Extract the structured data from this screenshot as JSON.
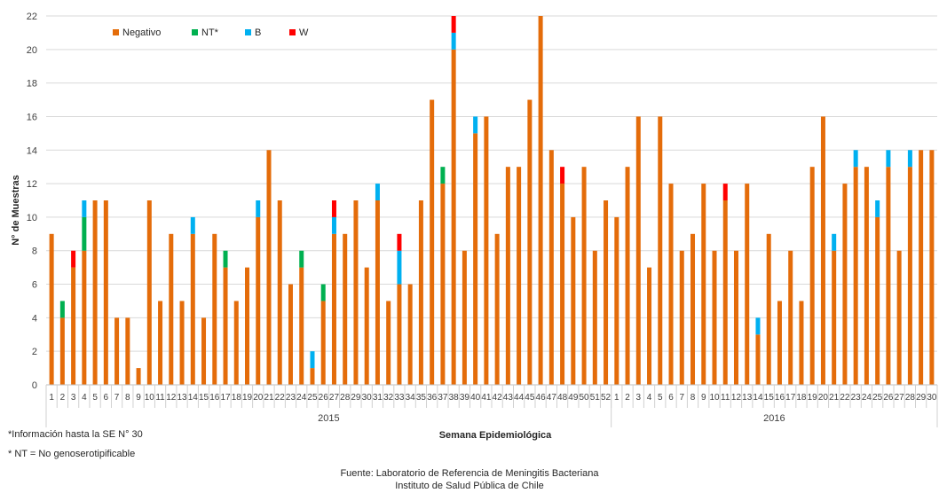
{
  "chart_data": {
    "type": "bar",
    "stacked": true,
    "ylabel": "N° de Muestras",
    "xlabel": "Semana Epidemiológica",
    "ylim": [
      0,
      22
    ],
    "yticks": [
      0,
      2,
      4,
      6,
      8,
      10,
      12,
      14,
      16,
      18,
      20,
      22
    ],
    "grid": true,
    "legend_position": "top-left",
    "years": [
      {
        "label": "2015",
        "weeks": 52
      },
      {
        "label": "2016",
        "weeks": 30
      }
    ],
    "categories": [
      "1",
      "2",
      "3",
      "4",
      "5",
      "6",
      "7",
      "8",
      "9",
      "10",
      "11",
      "12",
      "13",
      "14",
      "15",
      "16",
      "17",
      "18",
      "19",
      "20",
      "21",
      "22",
      "23",
      "24",
      "25",
      "26",
      "27",
      "28",
      "29",
      "30",
      "31",
      "32",
      "33",
      "34",
      "35",
      "36",
      "37",
      "38",
      "39",
      "40",
      "41",
      "42",
      "43",
      "44",
      "45",
      "46",
      "47",
      "48",
      "49",
      "50",
      "51",
      "52",
      "1",
      "2",
      "3",
      "4",
      "5",
      "6",
      "7",
      "8",
      "9",
      "10",
      "11",
      "12",
      "13",
      "14",
      "15",
      "16",
      "17",
      "18",
      "19",
      "20",
      "21",
      "22",
      "23",
      "24",
      "25",
      "26",
      "27",
      "28",
      "29",
      "30"
    ],
    "series": [
      {
        "name": "Negativo",
        "color": "#E46C0A",
        "values": [
          9,
          4,
          7,
          8,
          11,
          11,
          4,
          4,
          1,
          11,
          5,
          9,
          5,
          9,
          4,
          9,
          7,
          5,
          7,
          10,
          14,
          11,
          6,
          7,
          1,
          5,
          9,
          9,
          11,
          7,
          11,
          5,
          6,
          6,
          11,
          17,
          12,
          20,
          8,
          15,
          16,
          9,
          13,
          13,
          17,
          22,
          14,
          12,
          10,
          13,
          8,
          11,
          10,
          13,
          16,
          7,
          16,
          12,
          8,
          9,
          12,
          8,
          11,
          8,
          12,
          3,
          9,
          5,
          8,
          5,
          13,
          16,
          8,
          12,
          13,
          13,
          10,
          13,
          8,
          13,
          14,
          14
        ]
      },
      {
        "name": "NT*",
        "color": "#00B050",
        "values": [
          0,
          1,
          0,
          2,
          0,
          0,
          0,
          0,
          0,
          0,
          0,
          0,
          0,
          0,
          0,
          0,
          1,
          0,
          0,
          0,
          0,
          0,
          0,
          1,
          0,
          1,
          0,
          0,
          0,
          0,
          0,
          0,
          0,
          0,
          0,
          0,
          1,
          0,
          0,
          0,
          0,
          0,
          0,
          0,
          0,
          0,
          0,
          0,
          0,
          0,
          0,
          0,
          0,
          0,
          0,
          0,
          0,
          0,
          0,
          0,
          0,
          0,
          0,
          0,
          0,
          0,
          0,
          0,
          0,
          0,
          0,
          0,
          0,
          0,
          0,
          0,
          0,
          0,
          0,
          0,
          0,
          0
        ]
      },
      {
        "name": "B",
        "color": "#00B0F0",
        "values": [
          0,
          0,
          0,
          1,
          0,
          0,
          0,
          0,
          0,
          0,
          0,
          0,
          0,
          1,
          0,
          0,
          0,
          0,
          0,
          1,
          0,
          0,
          0,
          0,
          1,
          0,
          1,
          0,
          0,
          0,
          1,
          0,
          2,
          0,
          0,
          0,
          0,
          1,
          0,
          1,
          0,
          0,
          0,
          0,
          0,
          0,
          0,
          0,
          0,
          0,
          0,
          0,
          0,
          0,
          0,
          0,
          0,
          0,
          0,
          0,
          0,
          0,
          0,
          0,
          0,
          1,
          0,
          0,
          0,
          0,
          0,
          0,
          1,
          0,
          1,
          0,
          1,
          1,
          0,
          1,
          0,
          0
        ]
      },
      {
        "name": "W",
        "color": "#FF0000",
        "values": [
          0,
          0,
          1,
          0,
          0,
          0,
          0,
          0,
          0,
          0,
          0,
          0,
          0,
          0,
          0,
          0,
          0,
          0,
          0,
          0,
          0,
          0,
          0,
          0,
          0,
          0,
          1,
          0,
          0,
          0,
          0,
          0,
          1,
          0,
          0,
          0,
          0,
          1,
          0,
          0,
          0,
          0,
          0,
          0,
          0,
          0,
          0,
          1,
          0,
          0,
          0,
          0,
          0,
          0,
          0,
          0,
          0,
          0,
          0,
          0,
          0,
          0,
          1,
          0,
          0,
          0,
          0,
          0,
          0,
          0,
          0,
          0,
          0,
          0,
          0,
          0,
          0,
          0,
          0,
          0,
          0,
          0
        ]
      }
    ]
  },
  "notes": {
    "info": "*Información  hasta la SE N° 30",
    "nt": "* NT = No genoserotipificable",
    "source_line1": "Fuente: Laboratorio de Referencia  de Meningitis Bacteriana",
    "source_line2": "Instituto de Salud Pública de Chile"
  }
}
